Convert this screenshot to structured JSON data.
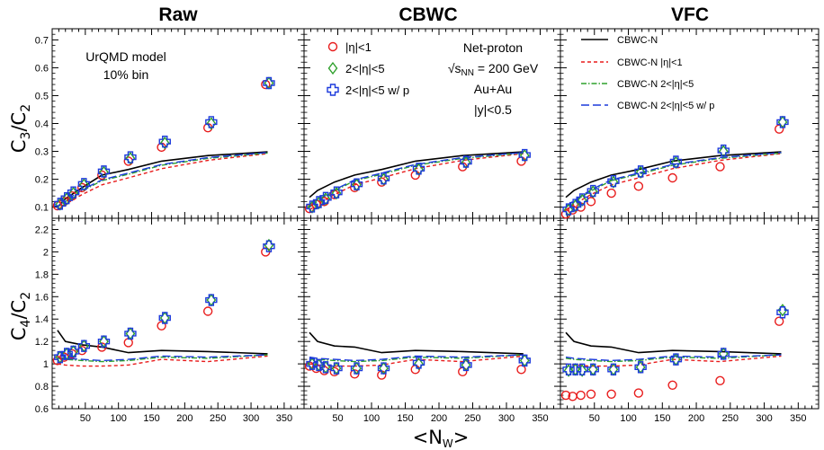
{
  "chart_data": {
    "type": "scatter",
    "column_titles": [
      "Raw",
      "CBWC",
      "VFC"
    ],
    "row_ylabels": [
      {
        "main": "C",
        "sub1": "3",
        "slash": "/C",
        "sub2": "2"
      },
      {
        "main": "C",
        "sub1": "4",
        "slash": "/C",
        "sub2": "2"
      }
    ],
    "xlabel": "<Nw>",
    "xlabel_main": "<N",
    "xlabel_sub": "W",
    "xlabel_end": ">",
    "xlim": [
      0,
      380
    ],
    "x_ticks": [
      50,
      100,
      150,
      200,
      250,
      300,
      350
    ],
    "x_tick_labels": [
      "50",
      "100",
      "150",
      "200",
      "250",
      "300",
      "350"
    ],
    "rows": [
      {
        "ylim": [
          0.06,
          0.74
        ],
        "y_ticks": [
          0.1,
          0.2,
          0.3,
          0.4,
          0.5,
          0.6,
          0.7
        ],
        "y_tick_labels": [
          "0.1",
          "0.2",
          "0.3",
          "0.4",
          "0.5",
          "0.6",
          "0.7"
        ]
      },
      {
        "ylim": [
          0.6,
          2.3
        ],
        "y_ticks": [
          0.6,
          0.8,
          1.0,
          1.2,
          1.4,
          1.6,
          1.8,
          2.0,
          2.2
        ],
        "y_tick_labels": [
          "0.6",
          "0.8",
          "1",
          "1.2",
          "1.4",
          "1.6",
          "1.8",
          "2",
          "2.2"
        ]
      }
    ],
    "annotations": {
      "model": "UrQMD model",
      "bin": "10% bin",
      "particle": "Net-proton",
      "energy_prefix": "√s",
      "energy_sub": "NN",
      "energy_suffix": " = 200 GeV",
      "system": "Au+Au",
      "rapidity": "|y|<0.5"
    },
    "legend_markers": [
      {
        "name": "|η|<1",
        "marker": "circle",
        "color": "#e81c1c"
      },
      {
        "name": "2<|η|<5",
        "marker": "diamond",
        "color": "#2ea02c"
      },
      {
        "name": "2<|η|<5 w/ p",
        "marker": "cross",
        "color": "#1c3adc"
      }
    ],
    "legend_lines": [
      {
        "name": "CBWC-N",
        "color": "#000000",
        "dash": "solid"
      },
      {
        "name": "CBWC-N |η|<1",
        "color": "#e81c1c",
        "dash": "dashed"
      },
      {
        "name": "CBWC-N 2<|η|<5",
        "color": "#2ea02c",
        "dash": "dashdot"
      },
      {
        "name": "CBWC-N 2<|η|<5 w/ p",
        "color": "#1c3adc",
        "dash": "longdash"
      }
    ],
    "curve_x": [
      8,
      20,
      45,
      75,
      115,
      165,
      235,
      325
    ],
    "panels": [
      {
        "row": 0,
        "col": 0,
        "series": [
          {
            "name": "|η|<1",
            "x": [
              8,
              18,
              30,
              45,
              75,
              115,
              165,
              235,
              322
            ],
            "y": [
              0.105,
              0.12,
              0.14,
              0.17,
              0.215,
              0.265,
              0.315,
              0.385,
              0.54
            ]
          },
          {
            "name": "2<|η|<5",
            "x": [
              12,
              22,
              32,
              48,
              78,
              118,
              170,
              240,
              327
            ],
            "y": [
              0.11,
              0.13,
              0.15,
              0.18,
              0.225,
              0.275,
              0.33,
              0.4,
              0.545
            ]
          },
          {
            "name": "2<|η|<5 w/ p",
            "x": [
              12,
              22,
              32,
              48,
              78,
              118,
              170,
              240,
              327
            ],
            "y": [
              0.112,
              0.132,
              0.153,
              0.183,
              0.228,
              0.279,
              0.335,
              0.405,
              0.545
            ]
          }
        ],
        "curves": [
          {
            "name": "CBWC-N",
            "y": [
              0.1,
              0.13,
              0.17,
              0.215,
              0.235,
              0.265,
              0.285,
              0.298
            ]
          },
          {
            "name": "CBWC-N |η|<1",
            "y": [
              0.09,
              0.11,
              0.145,
              0.18,
              0.205,
              0.238,
              0.268,
              0.292
            ]
          },
          {
            "name": "CBWC-N 2<|η|<5",
            "y": [
              0.1,
              0.12,
              0.158,
              0.195,
              0.218,
              0.25,
              0.275,
              0.294
            ]
          },
          {
            "name": "CBWC-N 2<|η|<5 w/ p",
            "y": [
              0.103,
              0.123,
              0.162,
              0.198,
              0.222,
              0.253,
              0.278,
              0.296
            ]
          }
        ]
      },
      {
        "row": 0,
        "col": 1,
        "series": [
          {
            "name": "|η|<1",
            "x": [
              8,
              18,
              30,
              45,
              75,
              115,
              165,
              235,
              322
            ],
            "y": [
              0.095,
              0.11,
              0.12,
              0.145,
              0.17,
              0.19,
              0.215,
              0.245,
              0.265
            ]
          },
          {
            "name": "2<|η|<5",
            "x": [
              12,
              22,
              32,
              48,
              78,
              118,
              170,
              240,
              327
            ],
            "y": [
              0.1,
              0.115,
              0.13,
              0.15,
              0.18,
              0.2,
              0.235,
              0.26,
              0.285
            ]
          },
          {
            "name": "2<|η|<5 w/ p",
            "x": [
              12,
              22,
              32,
              48,
              78,
              118,
              170,
              240,
              327
            ],
            "y": [
              0.102,
              0.118,
              0.133,
              0.153,
              0.182,
              0.203,
              0.238,
              0.263,
              0.287
            ]
          }
        ],
        "curves": [
          {
            "name": "CBWC-N",
            "y": [
              0.135,
              0.16,
              0.19,
              0.215,
              0.235,
              0.265,
              0.285,
              0.298
            ]
          },
          {
            "name": "CBWC-N |η|<1",
            "y": [
              0.09,
              0.11,
              0.145,
              0.18,
              0.205,
              0.238,
              0.268,
              0.292
            ]
          },
          {
            "name": "CBWC-N 2<|η|<5",
            "y": [
              0.1,
              0.12,
              0.158,
              0.195,
              0.218,
              0.25,
              0.275,
              0.294
            ]
          },
          {
            "name": "CBWC-N 2<|η|<5 w/ p",
            "y": [
              0.103,
              0.123,
              0.162,
              0.198,
              0.222,
              0.253,
              0.278,
              0.296
            ]
          }
        ]
      },
      {
        "row": 0,
        "col": 2,
        "series": [
          {
            "name": "|η|<1",
            "x": [
              8,
              18,
              30,
              45,
              75,
              115,
              165,
              235,
              322
            ],
            "y": [
              0.075,
              0.09,
              0.1,
              0.12,
              0.15,
              0.175,
              0.205,
              0.245,
              0.38
            ]
          },
          {
            "name": "2<|η|<5",
            "x": [
              12,
              22,
              32,
              48,
              78,
              118,
              170,
              240,
              327
            ],
            "y": [
              0.09,
              0.105,
              0.125,
              0.155,
              0.19,
              0.225,
              0.26,
              0.3,
              0.405
            ]
          },
          {
            "name": "2<|η|<5 w/ p",
            "x": [
              12,
              22,
              32,
              48,
              78,
              118,
              170,
              240,
              327
            ],
            "y": [
              0.092,
              0.108,
              0.128,
              0.158,
              0.193,
              0.228,
              0.263,
              0.303,
              0.405
            ]
          }
        ],
        "curves": [
          {
            "name": "CBWC-N",
            "y": [
              0.135,
              0.16,
              0.19,
              0.215,
              0.235,
              0.265,
              0.285,
              0.298
            ]
          },
          {
            "name": "CBWC-N |η|<1",
            "y": [
              0.09,
              0.11,
              0.145,
              0.18,
              0.205,
              0.238,
              0.268,
              0.292
            ]
          },
          {
            "name": "CBWC-N 2<|η|<5",
            "y": [
              0.1,
              0.12,
              0.158,
              0.195,
              0.218,
              0.25,
              0.275,
              0.294
            ]
          },
          {
            "name": "CBWC-N 2<|η|<5 w/ p",
            "y": [
              0.103,
              0.123,
              0.162,
              0.198,
              0.222,
              0.253,
              0.278,
              0.296
            ]
          }
        ]
      },
      {
        "row": 1,
        "col": 0,
        "series": [
          {
            "name": "|η|<1",
            "x": [
              8,
              18,
              30,
              45,
              75,
              115,
              165,
              235,
              322
            ],
            "y": [
              1.03,
              1.06,
              1.09,
              1.12,
              1.15,
              1.19,
              1.34,
              1.47,
              2.0
            ]
          },
          {
            "name": "2<|η|<5",
            "x": [
              12,
              22,
              32,
              48,
              78,
              118,
              170,
              240,
              327
            ],
            "y": [
              1.06,
              1.09,
              1.11,
              1.16,
              1.2,
              1.27,
              1.41,
              1.57,
              2.06
            ]
          },
          {
            "name": "2<|η|<5 w/ p",
            "x": [
              12,
              22,
              32,
              48,
              78,
              118,
              170,
              240,
              327
            ],
            "y": [
              1.06,
              1.09,
              1.11,
              1.16,
              1.2,
              1.27,
              1.41,
              1.57,
              2.05
            ]
          }
        ],
        "curves": [
          {
            "name": "CBWC-N",
            "y": [
              1.3,
              1.2,
              1.17,
              1.15,
              1.1,
              1.12,
              1.11,
              1.09
            ]
          },
          {
            "name": "CBWC-N |η|<1",
            "y": [
              1.0,
              0.99,
              0.98,
              0.98,
              0.99,
              1.04,
              1.02,
              1.07
            ]
          },
          {
            "name": "CBWC-N 2<|η|<5",
            "y": [
              1.05,
              1.04,
              1.03,
              1.02,
              1.03,
              1.06,
              1.05,
              1.08
            ]
          },
          {
            "name": "CBWC-N 2<|η|<5 w/ p",
            "y": [
              1.06,
              1.05,
              1.04,
              1.03,
              1.04,
              1.07,
              1.06,
              1.08
            ]
          }
        ]
      },
      {
        "row": 1,
        "col": 1,
        "series": [
          {
            "name": "|η|<1",
            "x": [
              8,
              18,
              30,
              45,
              75,
              115,
              165,
              235,
              322
            ],
            "y": [
              0.98,
              0.96,
              0.94,
              0.93,
              0.91,
              0.9,
              0.95,
              0.93,
              0.95
            ]
          },
          {
            "name": "2<|η|<5",
            "x": [
              12,
              22,
              32,
              48,
              78,
              118,
              170,
              240,
              327
            ],
            "y": [
              1.0,
              0.99,
              0.97,
              0.96,
              0.96,
              0.96,
              1.0,
              0.99,
              1.03
            ]
          },
          {
            "name": "2<|η|<5 w/ p",
            "x": [
              12,
              22,
              32,
              48,
              78,
              118,
              170,
              240,
              327
            ],
            "y": [
              1.0,
              0.99,
              0.97,
              0.96,
              0.96,
              0.96,
              1.01,
              0.99,
              1.03
            ]
          }
        ],
        "curves": [
          {
            "name": "CBWC-N",
            "y": [
              1.28,
              1.2,
              1.16,
              1.15,
              1.1,
              1.12,
              1.11,
              1.09
            ]
          },
          {
            "name": "CBWC-N |η|<1",
            "y": [
              1.0,
              0.99,
              0.98,
              0.98,
              0.99,
              1.04,
              1.02,
              1.07
            ]
          },
          {
            "name": "CBWC-N 2<|η|<5",
            "y": [
              1.05,
              1.04,
              1.03,
              1.02,
              1.03,
              1.06,
              1.05,
              1.08
            ]
          },
          {
            "name": "CBWC-N 2<|η|<5 w/ p",
            "y": [
              1.06,
              1.05,
              1.04,
              1.03,
              1.04,
              1.07,
              1.06,
              1.08
            ]
          }
        ]
      },
      {
        "row": 1,
        "col": 2,
        "series": [
          {
            "name": "|η|<1",
            "x": [
              8,
              18,
              30,
              45,
              75,
              115,
              165,
              235,
              322
            ],
            "y": [
              0.72,
              0.71,
              0.72,
              0.73,
              0.73,
              0.74,
              0.81,
              0.85,
              1.38
            ]
          },
          {
            "name": "2<|η|<5",
            "x": [
              12,
              22,
              32,
              48,
              78,
              118,
              170,
              240,
              327
            ],
            "y": [
              0.94,
              0.95,
              0.94,
              0.95,
              0.95,
              0.97,
              1.04,
              1.09,
              1.48
            ]
          },
          {
            "name": "2<|η|<5 w/ p",
            "x": [
              12,
              22,
              32,
              48,
              78,
              118,
              170,
              240,
              327
            ],
            "y": [
              0.95,
              0.95,
              0.95,
              0.95,
              0.95,
              0.97,
              1.04,
              1.09,
              1.46
            ]
          }
        ],
        "curves": [
          {
            "name": "CBWC-N",
            "y": [
              1.28,
              1.2,
              1.16,
              1.15,
              1.1,
              1.12,
              1.11,
              1.09
            ]
          },
          {
            "name": "CBWC-N |η|<1",
            "y": [
              1.0,
              0.99,
              0.98,
              0.98,
              0.99,
              1.04,
              1.02,
              1.07
            ]
          },
          {
            "name": "CBWC-N 2<|η|<5",
            "y": [
              1.05,
              1.04,
              1.03,
              1.02,
              1.03,
              1.06,
              1.05,
              1.08
            ]
          },
          {
            "name": "CBWC-N 2<|η|<5 w/ p",
            "y": [
              1.06,
              1.05,
              1.04,
              1.03,
              1.04,
              1.07,
              1.06,
              1.08
            ]
          }
        ]
      }
    ]
  }
}
